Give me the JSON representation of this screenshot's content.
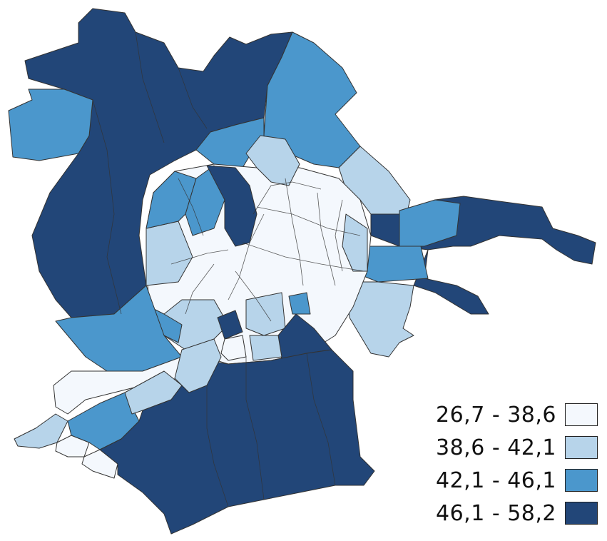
{
  "map": {
    "colors": {
      "c1": "#f4f8fd",
      "c2": "#b7d4ea",
      "c3": "#4b97cc",
      "c4": "#224678",
      "border": "#333333"
    }
  },
  "legend": {
    "items": [
      {
        "label": "26,7 - 38,6",
        "color": "#f4f8fd"
      },
      {
        "label": "38,6 - 42,1",
        "color": "#b7d4ea"
      },
      {
        "label": "42,1 - 46,1",
        "color": "#4b97cc"
      },
      {
        "label": "46,1 - 58,2",
        "color": "#224678"
      }
    ]
  }
}
